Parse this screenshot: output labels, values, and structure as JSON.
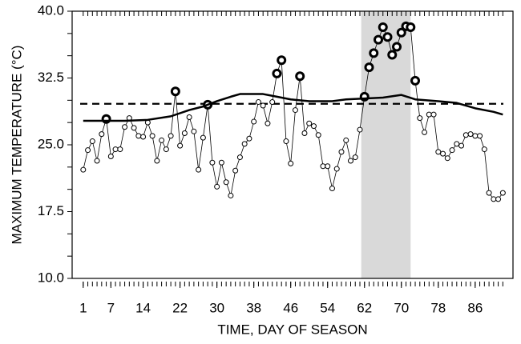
{
  "chart_data": {
    "type": "line",
    "x_label": "TIME, DAY OF SEASON",
    "y_label": "MAXIMUM TEMPERATURE (°C)",
    "x": [
      1,
      2,
      3,
      4,
      5,
      6,
      7,
      8,
      9,
      10,
      11,
      12,
      13,
      14,
      15,
      16,
      17,
      18,
      19,
      20,
      21,
      22,
      23,
      24,
      25,
      26,
      27,
      28,
      29,
      30,
      31,
      32,
      33,
      34,
      35,
      36,
      37,
      38,
      39,
      40,
      41,
      42,
      43,
      44,
      45,
      46,
      47,
      48,
      49,
      50,
      51,
      52,
      53,
      54,
      55,
      56,
      57,
      58,
      59,
      60,
      61,
      62,
      63,
      64,
      65,
      66,
      67,
      68,
      69,
      70,
      71,
      72,
      73,
      74,
      75,
      76,
      77,
      78,
      79,
      80,
      81,
      82,
      83,
      84,
      85,
      86,
      87,
      88,
      89,
      90,
      91,
      92
    ],
    "series": [
      {
        "color": "#000000",
        "marker": "circle",
        "line_width": 0.8,
        "values": [
          22.2,
          24.4,
          25.4,
          23.2,
          26.2,
          27.9,
          23.7,
          24.5,
          24.5,
          27.0,
          28.0,
          26.9,
          26.0,
          25.9,
          27.5,
          26.0,
          23.2,
          25.5,
          24.5,
          26.0,
          31.0,
          24.9,
          26.3,
          28.1,
          26.5,
          22.2,
          25.8,
          29.5,
          23.0,
          20.3,
          23.0,
          20.8,
          19.3,
          22.1,
          23.6,
          25.1,
          25.7,
          27.6,
          29.8,
          29.4,
          27.4,
          29.8,
          33.0,
          34.5,
          25.4,
          22.9,
          28.9,
          32.7,
          26.3,
          27.4,
          27.1,
          26.1,
          22.6,
          22.6,
          20.1,
          22.3,
          24.2,
          25.5,
          23.2,
          23.6,
          26.7,
          30.4,
          33.7,
          35.3,
          36.8,
          38.2,
          37.1,
          35.1,
          36.0,
          37.6,
          38.3,
          38.2,
          32.2,
          28.0,
          26.4,
          28.4,
          28.4,
          24.2,
          24.0,
          23.5,
          24.4,
          25.1,
          24.9,
          26.1,
          26.2,
          26.0,
          26.0,
          24.5,
          19.6,
          18.9,
          18.9,
          19.6
        ],
        "emphasized": [
          false,
          false,
          false,
          false,
          false,
          true,
          false,
          false,
          false,
          false,
          false,
          false,
          false,
          false,
          false,
          false,
          false,
          false,
          false,
          false,
          true,
          false,
          false,
          false,
          false,
          false,
          false,
          true,
          false,
          false,
          false,
          false,
          false,
          false,
          false,
          false,
          false,
          false,
          false,
          false,
          false,
          false,
          true,
          true,
          false,
          false,
          false,
          true,
          false,
          false,
          false,
          false,
          false,
          false,
          false,
          false,
          false,
          false,
          false,
          false,
          false,
          true,
          true,
          true,
          true,
          true,
          true,
          true,
          true,
          true,
          true,
          true,
          true,
          false,
          false,
          false,
          false,
          false,
          false,
          false,
          false,
          false,
          false,
          false,
          false,
          false,
          false,
          false,
          false,
          false,
          false,
          false
        ]
      },
      {
        "color": "#000000",
        "line_width": 2.5,
        "x": [
          1,
          10,
          15,
          20,
          24,
          27,
          30,
          33,
          35,
          40,
          43,
          46,
          50,
          55,
          58,
          62,
          66,
          70,
          73,
          78,
          82,
          86,
          90,
          92
        ],
        "values": [
          27.7,
          27.7,
          27.8,
          28.2,
          28.9,
          29.3,
          29.9,
          30.4,
          30.7,
          30.7,
          30.4,
          30.1,
          29.9,
          29.9,
          30.1,
          30.2,
          30.3,
          30.6,
          30.1,
          29.9,
          29.7,
          29.1,
          28.7,
          28.4
        ]
      }
    ],
    "hline": {
      "value": 29.6,
      "dashed": true,
      "color": "#000000"
    },
    "shaded_x": [
      61.3,
      72
    ],
    "shade_color": "#d9d9d9",
    "xlim": [
      -1.4,
      94.2
    ],
    "ylim": [
      10,
      40
    ],
    "xticks": [
      1,
      7,
      14,
      22,
      30,
      38,
      46,
      54,
      62,
      70,
      78,
      86
    ],
    "yticks": [
      {
        "value": 10,
        "label": "10.0"
      },
      17.5,
      {
        "value": 25,
        "label": "25.0"
      },
      32.5,
      {
        "value": 40,
        "label": "40.0"
      }
    ],
    "yminor_ticks": [
      12.5,
      15,
      20,
      22.5,
      27.5,
      30,
      35,
      37.5
    ]
  }
}
